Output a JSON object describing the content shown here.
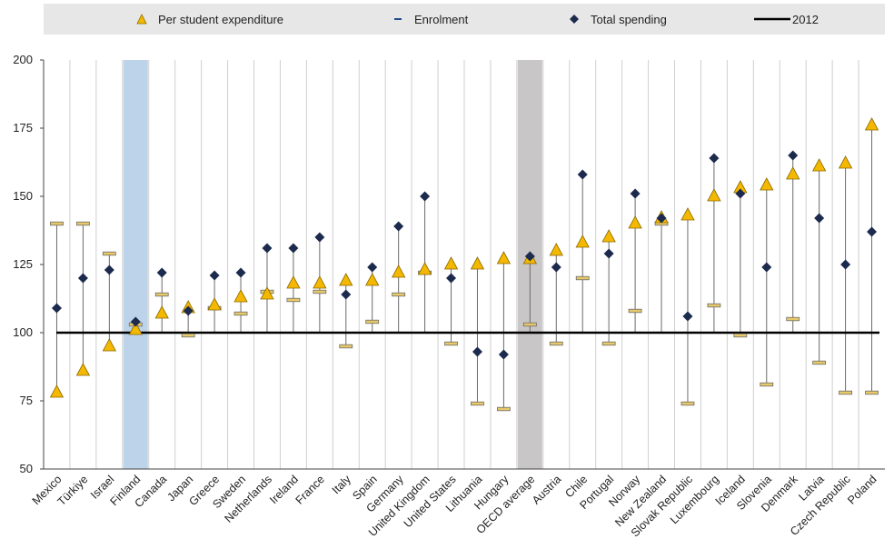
{
  "legend": {
    "per_student": "Per student expenditure",
    "enrolment": "Enrolment",
    "total": "Total spending",
    "line2012": "2012"
  },
  "colors": {
    "triangle": "#f5b800",
    "triangle_stroke": "#8a6a00",
    "diamond": "#1c2a4d",
    "enrol": "#6b6b6b",
    "whisker": "#6b6b6b",
    "ref_line": "#000000",
    "highlight_finland": "#bcd3ea",
    "highlight_oecd": "#c8c6c6",
    "legend_bg": "#e7e7e7"
  },
  "chart_data": {
    "type": "scatter",
    "ylim": [
      50,
      200
    ],
    "yticks": [
      50,
      75,
      100,
      125,
      150,
      175,
      200
    ],
    "reference_value": 100,
    "reference_label": "2012",
    "highlighted": [
      "Finland",
      "OECD average"
    ],
    "categories": [
      "Mexico",
      "Türkiye",
      "Israel",
      "Finland",
      "Canada",
      "Japan",
      "Greece",
      "Sweden",
      "Netherlands",
      "Ireland",
      "France",
      "Italy",
      "Spain",
      "Germany",
      "United Kingdom",
      "United States",
      "Lithuania",
      "Hungary",
      "OECD average",
      "Austria",
      "Chile",
      "Portugal",
      "Norway",
      "New Zealand",
      "Slovak Republic",
      "Luxembourg",
      "Iceland",
      "Slovenia",
      "Denmark",
      "Latvia",
      "Czech Republic",
      "Poland"
    ],
    "series": [
      {
        "name": "Per student expenditure",
        "marker": "triangle",
        "values": [
          78,
          86,
          95,
          101,
          107,
          109,
          110,
          113,
          114,
          118,
          118,
          119,
          119,
          122,
          123,
          125,
          125,
          127,
          127,
          130,
          133,
          135,
          140,
          142,
          143,
          150,
          153,
          154,
          158,
          161,
          162,
          176
        ]
      },
      {
        "name": "Enrolment",
        "marker": "dash",
        "values": [
          140,
          140,
          129,
          103,
          114,
          99,
          109,
          107,
          115,
          112,
          115,
          95,
          104,
          114,
          122,
          96,
          74,
          72,
          103,
          96,
          120,
          96,
          108,
          140,
          74,
          110,
          99,
          81,
          105,
          89,
          78,
          78
        ]
      },
      {
        "name": "Total spending",
        "marker": "diamond",
        "values": [
          109,
          120,
          123,
          104,
          122,
          108,
          121,
          122,
          131,
          131,
          135,
          114,
          124,
          139,
          150,
          120,
          93,
          92,
          128,
          124,
          158,
          129,
          151,
          142,
          106,
          164,
          151,
          124,
          165,
          142,
          125,
          137
        ]
      }
    ]
  }
}
